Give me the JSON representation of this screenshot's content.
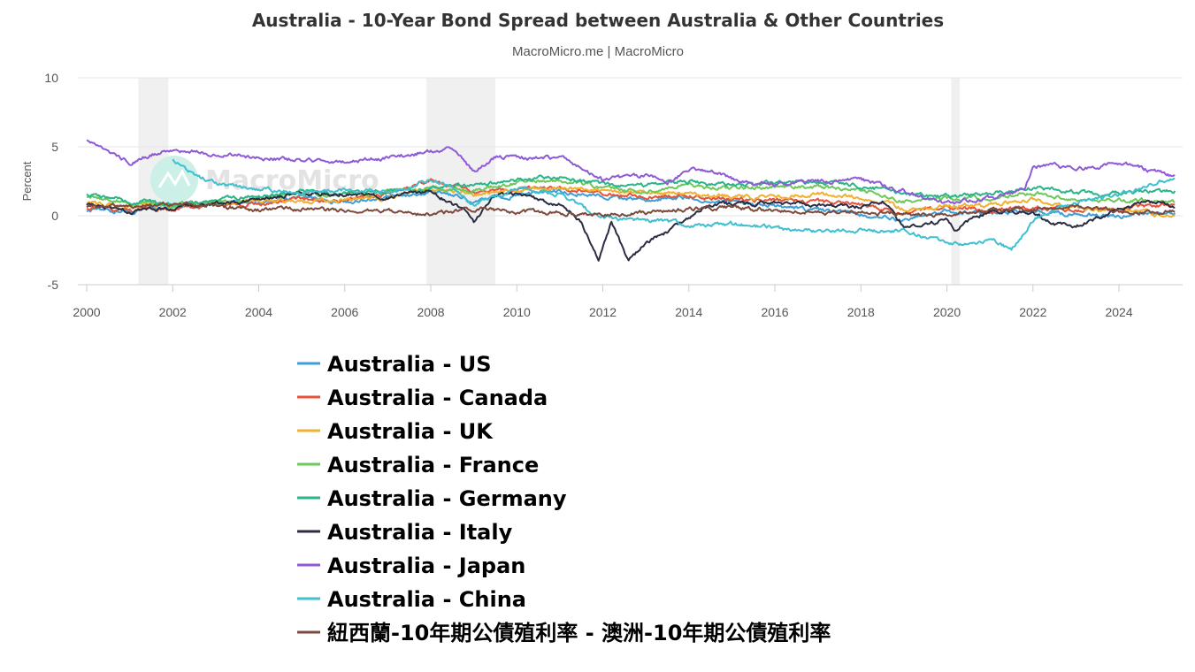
{
  "chart_data": {
    "type": "line",
    "title": "Australia - 10-Year Bond Spread between Australia & Other Countries",
    "subtitle": "MacroMicro.me | MacroMicro",
    "ylabel": "Percent",
    "xlabel": "",
    "xlim": [
      2000,
      2025.5
    ],
    "ylim": [
      -5,
      10
    ],
    "y_ticks": [
      10,
      5,
      0,
      -5
    ],
    "x_ticks": [
      2000,
      2002,
      2004,
      2006,
      2008,
      2010,
      2012,
      2014,
      2016,
      2018,
      2020,
      2022,
      2024
    ],
    "grid": "horizontal",
    "legend_position": "bottom",
    "watermark": "MacroMicro",
    "recessions": [
      [
        2001.2,
        2001.9
      ],
      [
        2007.9,
        2009.5
      ],
      [
        2020.1,
        2020.3
      ]
    ],
    "series": [
      {
        "name": "Australia - US",
        "color": "#3c9fd8",
        "points": [
          [
            2000,
            0.4
          ],
          [
            2001,
            0.3
          ],
          [
            2002,
            0.6
          ],
          [
            2003,
            0.9
          ],
          [
            2004,
            1.0
          ],
          [
            2005,
            1.3
          ],
          [
            2006,
            1.0
          ],
          [
            2007,
            1.3
          ],
          [
            2008,
            1.8
          ],
          [
            2009,
            1.0
          ],
          [
            2010,
            1.5
          ],
          [
            2011,
            1.8
          ],
          [
            2012,
            1.4
          ],
          [
            2013,
            1.2
          ],
          [
            2014,
            1.3
          ],
          [
            2015,
            1.0
          ],
          [
            2016,
            0.7
          ],
          [
            2017,
            0.4
          ],
          [
            2018,
            0.1
          ],
          [
            2019,
            -0.3
          ],
          [
            2020,
            0.3
          ],
          [
            2021,
            0.2
          ],
          [
            2022,
            0.3
          ],
          [
            2023,
            0.1
          ],
          [
            2024,
            0.0
          ],
          [
            2025.3,
            0.2
          ]
        ]
      },
      {
        "name": "Australia - Canada",
        "color": "#e4533a",
        "points": [
          [
            2000,
            0.6
          ],
          [
            2001,
            0.4
          ],
          [
            2002,
            0.6
          ],
          [
            2003,
            0.8
          ],
          [
            2004,
            0.9
          ],
          [
            2005,
            1.2
          ],
          [
            2006,
            1.2
          ],
          [
            2007,
            1.6
          ],
          [
            2008,
            2.6
          ],
          [
            2009,
            1.7
          ],
          [
            2010,
            1.9
          ],
          [
            2011,
            2.0
          ],
          [
            2012,
            1.6
          ],
          [
            2013,
            1.4
          ],
          [
            2014,
            1.4
          ],
          [
            2015,
            1.2
          ],
          [
            2016,
            1.1
          ],
          [
            2017,
            1.0
          ],
          [
            2018,
            0.8
          ],
          [
            2019,
            0.2
          ],
          [
            2020,
            0.6
          ],
          [
            2021,
            0.4
          ],
          [
            2022,
            0.6
          ],
          [
            2023,
            0.4
          ],
          [
            2024,
            0.5
          ],
          [
            2025.3,
            0.8
          ]
        ]
      },
      {
        "name": "Australia - UK",
        "color": "#f0b030",
        "points": [
          [
            2000,
            0.9
          ],
          [
            2001,
            0.7
          ],
          [
            2002,
            0.7
          ],
          [
            2003,
            0.9
          ],
          [
            2004,
            1.1
          ],
          [
            2005,
            1.0
          ],
          [
            2006,
            1.2
          ],
          [
            2007,
            1.3
          ],
          [
            2008,
            2.0
          ],
          [
            2009,
            1.5
          ],
          [
            2010,
            1.9
          ],
          [
            2011,
            2.0
          ],
          [
            2012,
            1.9
          ],
          [
            2013,
            1.6
          ],
          [
            2014,
            1.5
          ],
          [
            2015,
            1.4
          ],
          [
            2016,
            1.4
          ],
          [
            2017,
            1.6
          ],
          [
            2018,
            1.3
          ],
          [
            2019,
            0.5
          ],
          [
            2020,
            0.7
          ],
          [
            2021,
            0.8
          ],
          [
            2022,
            1.2
          ],
          [
            2023,
            0.5
          ],
          [
            2024,
            0.4
          ],
          [
            2025.3,
            0.0
          ]
        ]
      },
      {
        "name": "Australia - France",
        "color": "#6cc85a",
        "points": [
          [
            2000,
            1.4
          ],
          [
            2001,
            1.0
          ],
          [
            2002,
            0.8
          ],
          [
            2003,
            1.0
          ],
          [
            2004,
            1.3
          ],
          [
            2005,
            1.6
          ],
          [
            2006,
            1.6
          ],
          [
            2007,
            1.8
          ],
          [
            2008,
            2.0
          ],
          [
            2009,
            1.8
          ],
          [
            2010,
            2.4
          ],
          [
            2011,
            2.5
          ],
          [
            2012,
            2.1
          ],
          [
            2013,
            1.7
          ],
          [
            2014,
            2.2
          ],
          [
            2015,
            2.0
          ],
          [
            2016,
            2.1
          ],
          [
            2017,
            2.1
          ],
          [
            2018,
            1.8
          ],
          [
            2019,
            1.1
          ],
          [
            2020,
            1.3
          ],
          [
            2021,
            1.3
          ],
          [
            2022,
            1.6
          ],
          [
            2023,
            1.2
          ],
          [
            2024,
            1.1
          ],
          [
            2025.3,
            1.0
          ]
        ]
      },
      {
        "name": "Australia - Germany",
        "color": "#2bb48a",
        "points": [
          [
            2000,
            1.6
          ],
          [
            2001,
            1.0
          ],
          [
            2002,
            0.9
          ],
          [
            2003,
            1.1
          ],
          [
            2004,
            1.4
          ],
          [
            2005,
            1.7
          ],
          [
            2006,
            1.7
          ],
          [
            2007,
            1.7
          ],
          [
            2008,
            2.0
          ],
          [
            2009,
            2.2
          ],
          [
            2010,
            2.6
          ],
          [
            2011,
            2.8
          ],
          [
            2012,
            2.3
          ],
          [
            2013,
            2.2
          ],
          [
            2014,
            2.5
          ],
          [
            2015,
            2.2
          ],
          [
            2016,
            2.3
          ],
          [
            2017,
            2.4
          ],
          [
            2018,
            2.2
          ],
          [
            2019,
            1.6
          ],
          [
            2020,
            1.4
          ],
          [
            2021,
            1.6
          ],
          [
            2022,
            2.0
          ],
          [
            2023,
            1.7
          ],
          [
            2024,
            1.6
          ],
          [
            2025.3,
            1.8
          ]
        ]
      },
      {
        "name": "Australia - Italy",
        "color": "#2b2d42",
        "points": [
          [
            2000,
            0.8
          ],
          [
            2001,
            0.3
          ],
          [
            2002,
            0.6
          ],
          [
            2003,
            0.9
          ],
          [
            2004,
            1.2
          ],
          [
            2005,
            1.6
          ],
          [
            2006,
            1.6
          ],
          [
            2007,
            1.4
          ],
          [
            2008,
            1.8
          ],
          [
            2008.8,
            0.3
          ],
          [
            2009,
            -0.5
          ],
          [
            2009.5,
            1.5
          ],
          [
            2010,
            1.6
          ],
          [
            2010.5,
            1.2
          ],
          [
            2011,
            0.8
          ],
          [
            2011.5,
            -0.5
          ],
          [
            2011.9,
            -3.3
          ],
          [
            2012.2,
            -0.5
          ],
          [
            2012.6,
            -3.3
          ],
          [
            2013,
            -2.0
          ],
          [
            2013.6,
            -1.0
          ],
          [
            2014,
            -0.2
          ],
          [
            2014.5,
            0.8
          ],
          [
            2015,
            0.8
          ],
          [
            2016,
            1.0
          ],
          [
            2017,
            0.8
          ],
          [
            2018,
            0.6
          ],
          [
            2018.5,
            1.0
          ],
          [
            2019,
            -0.8
          ],
          [
            2020,
            -0.3
          ],
          [
            2020.2,
            -1.0
          ],
          [
            2021,
            0.5
          ],
          [
            2022,
            0.2
          ],
          [
            2022.5,
            -0.5
          ],
          [
            2023,
            -0.8
          ],
          [
            2024,
            0.5
          ],
          [
            2025,
            1.1
          ],
          [
            2025.3,
            0.6
          ]
        ]
      },
      {
        "name": "Australia - Japan",
        "color": "#8e5ad6",
        "points": [
          [
            2000,
            5.5
          ],
          [
            2000.5,
            4.5
          ],
          [
            2001,
            3.9
          ],
          [
            2001.5,
            4.4
          ],
          [
            2002,
            4.8
          ],
          [
            2003,
            4.5
          ],
          [
            2004,
            4.2
          ],
          [
            2005,
            4.1
          ],
          [
            2006,
            3.9
          ],
          [
            2007,
            4.2
          ],
          [
            2008,
            4.7
          ],
          [
            2008.4,
            4.9
          ],
          [
            2009,
            3.2
          ],
          [
            2009.5,
            4.3
          ],
          [
            2010,
            4.2
          ],
          [
            2011,
            4.2
          ],
          [
            2011.5,
            3.5
          ],
          [
            2012,
            2.6
          ],
          [
            2013,
            2.9
          ],
          [
            2013.5,
            2.4
          ],
          [
            2014,
            3.3
          ],
          [
            2014.5,
            3.4
          ],
          [
            2015,
            2.7
          ],
          [
            2016,
            2.2
          ],
          [
            2017,
            2.5
          ],
          [
            2018,
            2.6
          ],
          [
            2019,
            1.8
          ],
          [
            2020,
            0.9
          ],
          [
            2021,
            1.3
          ],
          [
            2021.8,
            1.9
          ],
          [
            2022,
            3.5
          ],
          [
            2022.5,
            3.6
          ],
          [
            2023,
            3.4
          ],
          [
            2024,
            3.8
          ],
          [
            2025.3,
            2.9
          ]
        ]
      },
      {
        "name": "Australia - China",
        "color": "#40bfd0",
        "points": [
          [
            2002,
            4.1
          ],
          [
            2002.5,
            3.0
          ],
          [
            2003,
            2.3
          ],
          [
            2004,
            1.9
          ],
          [
            2005,
            1.7
          ],
          [
            2006,
            1.9
          ],
          [
            2007,
            1.8
          ],
          [
            2008,
            2.6
          ],
          [
            2008.5,
            2.2
          ],
          [
            2009,
            0.8
          ],
          [
            2010,
            2.0
          ],
          [
            2011,
            1.6
          ],
          [
            2011.5,
            0.6
          ],
          [
            2012,
            -0.2
          ],
          [
            2013,
            -0.3
          ],
          [
            2014,
            -0.6
          ],
          [
            2015,
            -0.6
          ],
          [
            2016,
            -0.9
          ],
          [
            2017,
            -1.1
          ],
          [
            2018,
            -1.0
          ],
          [
            2019,
            -1.1
          ],
          [
            2020,
            -2.0
          ],
          [
            2020.5,
            -2.1
          ],
          [
            2021,
            -1.6
          ],
          [
            2021.5,
            -2.5
          ],
          [
            2022,
            -0.3
          ],
          [
            2022.5,
            0.5
          ],
          [
            2023,
            1.0
          ],
          [
            2024,
            1.5
          ],
          [
            2025,
            2.5
          ],
          [
            2025.3,
            2.7
          ]
        ]
      },
      {
        "name": "紐西蘭-10年期公債殖利率 - 澳洲-10年期公債殖利率",
        "color": "#7b4a3c",
        "points": [
          [
            2000,
            0.6
          ],
          [
            2001,
            0.7
          ],
          [
            2002,
            0.8
          ],
          [
            2003,
            0.7
          ],
          [
            2004,
            0.4
          ],
          [
            2005,
            0.5
          ],
          [
            2006,
            0.3
          ],
          [
            2007,
            0.4
          ],
          [
            2008,
            0.1
          ],
          [
            2009,
            0.5
          ],
          [
            2010,
            0.3
          ],
          [
            2011,
            0.2
          ],
          [
            2012,
            0.1
          ],
          [
            2013,
            0.2
          ],
          [
            2014,
            0.5
          ],
          [
            2015,
            0.6
          ],
          [
            2016,
            0.4
          ],
          [
            2017,
            0.3
          ],
          [
            2018,
            0.2
          ],
          [
            2019,
            0.1
          ],
          [
            2020,
            0.0
          ],
          [
            2021,
            0.5
          ],
          [
            2022,
            0.4
          ],
          [
            2023,
            0.7
          ],
          [
            2024,
            0.3
          ],
          [
            2025.3,
            0.3
          ]
        ]
      }
    ]
  }
}
